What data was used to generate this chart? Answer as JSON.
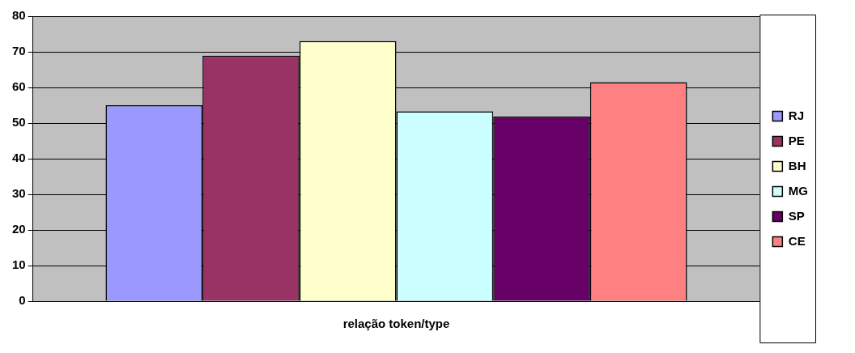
{
  "chart_data": {
    "type": "bar",
    "categories": [
      "relação token/type"
    ],
    "series": [
      {
        "name": "RJ",
        "color": "#9999ff",
        "values": [
          55
        ]
      },
      {
        "name": "PE",
        "color": "#993366",
        "values": [
          68.9
        ]
      },
      {
        "name": "BH",
        "color": "#ffffcc",
        "values": [
          73
        ]
      },
      {
        "name": "MG",
        "color": "#ccffff",
        "values": [
          53.3
        ]
      },
      {
        "name": "SP",
        "color": "#660066",
        "values": [
          51.8
        ]
      },
      {
        "name": "CE",
        "color": "#ff8080",
        "values": [
          61.5
        ]
      }
    ],
    "ylim": [
      0,
      80
    ],
    "yticks": [
      0,
      10,
      20,
      30,
      40,
      50,
      60,
      70,
      80
    ],
    "grid": "y",
    "legend": "right"
  }
}
